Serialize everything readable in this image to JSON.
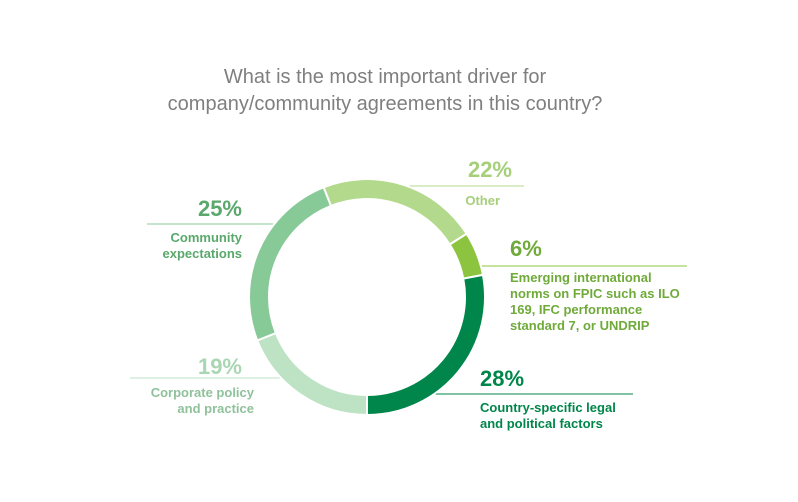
{
  "chart_data": {
    "type": "pie",
    "title": "What is the most important driver for company/community agreements in this country?",
    "title_lines": [
      "What is the most important driver for",
      "company/community agreements in this country?"
    ],
    "slices": [
      {
        "label": "Other",
        "value": 22,
        "value_label": "22%",
        "color": "#b3d98c"
      },
      {
        "label": "Emerging international norms on FPIC such as ILO 169, IFC performance standard 7, or UNDRIP",
        "label_lines": [
          "Emerging international",
          "norms on FPIC such as ILO",
          "169, IFC performance",
          "standard 7, or UNDRIP"
        ],
        "value": 6,
        "value_label": "6%",
        "color": "#8dc43f"
      },
      {
        "label": "Country-specific legal and political factors",
        "label_lines": [
          "Country-specific legal",
          "and political factors"
        ],
        "value": 28,
        "value_label": "28%",
        "color": "#00864a"
      },
      {
        "label": "Corporate policy and practice",
        "label_lines": [
          "Corporate policy",
          "and practice"
        ],
        "value": 19,
        "value_label": "19%",
        "color": "#bde2c4"
      },
      {
        "label": "Community expectations",
        "label_lines": [
          "Community",
          "expectations"
        ],
        "value": 25,
        "value_label": "25%",
        "color": "#88c998"
      }
    ],
    "legend": "none"
  }
}
